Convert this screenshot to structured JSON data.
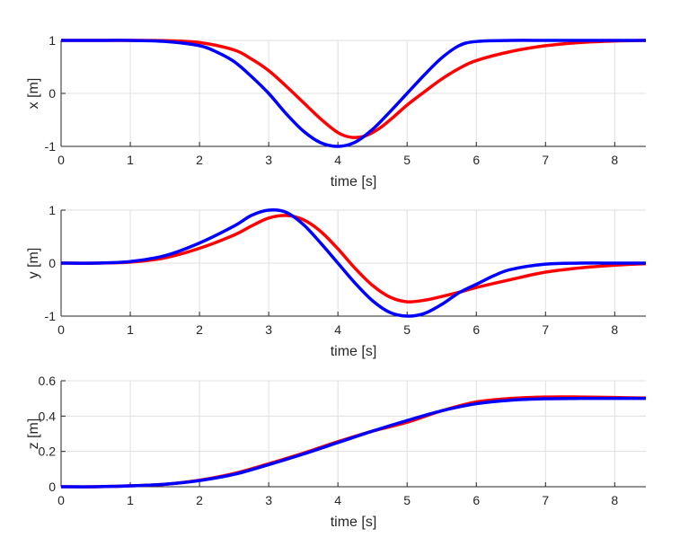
{
  "chart_data": [
    {
      "type": "line",
      "xlabel": "time [s]",
      "ylabel": "x [m]",
      "xlim": [
        0,
        8.45
      ],
      "ylim": [
        -1,
        1
      ],
      "xticks": [
        0,
        1,
        2,
        3,
        4,
        5,
        6,
        7,
        8
      ],
      "yticks": [
        -1,
        0,
        1
      ],
      "xtick_labels": [
        "0",
        "1",
        "2",
        "3",
        "4",
        "5",
        "6",
        "7",
        "8"
      ],
      "ytick_labels": [
        "-1",
        "0",
        "1"
      ],
      "grid": true,
      "series": [
        {
          "color": "#ff0000",
          "x": [
            0,
            0.5,
            1,
            1.5,
            2,
            2.5,
            2.75,
            3,
            3.25,
            3.5,
            3.75,
            4,
            4.2,
            4.4,
            4.6,
            4.8,
            5,
            5.25,
            5.5,
            5.75,
            6,
            6.5,
            7,
            7.5,
            8,
            8.45
          ],
          "y": [
            1,
            1,
            1,
            0.995,
            0.96,
            0.82,
            0.65,
            0.43,
            0.14,
            -0.17,
            -0.48,
            -0.74,
            -0.83,
            -0.8,
            -0.66,
            -0.45,
            -0.22,
            0.03,
            0.27,
            0.47,
            0.62,
            0.79,
            0.9,
            0.96,
            0.99,
            1
          ]
        },
        {
          "color": "#0000ff",
          "x": [
            0,
            0.5,
            1,
            1.5,
            2,
            2.25,
            2.5,
            2.75,
            3,
            3.25,
            3.5,
            3.75,
            4,
            4.25,
            4.5,
            4.75,
            5,
            5.25,
            5.5,
            5.75,
            6,
            6.5,
            7,
            7.5,
            8,
            8.45
          ],
          "y": [
            1,
            1,
            1,
            0.98,
            0.9,
            0.78,
            0.6,
            0.32,
            0,
            -0.38,
            -0.71,
            -0.93,
            -1,
            -0.92,
            -0.68,
            -0.35,
            0,
            0.35,
            0.67,
            0.9,
            0.98,
            1,
            1,
            1,
            1,
            1
          ]
        }
      ]
    },
    {
      "type": "line",
      "xlabel": "time [s]",
      "ylabel": "y [m]",
      "xlim": [
        0,
        8.45
      ],
      "ylim": [
        -1,
        1
      ],
      "xticks": [
        0,
        1,
        2,
        3,
        4,
        5,
        6,
        7,
        8
      ],
      "yticks": [
        -1,
        0,
        1
      ],
      "xtick_labels": [
        "0",
        "1",
        "2",
        "3",
        "4",
        "5",
        "6",
        "7",
        "8"
      ],
      "ytick_labels": [
        "-1",
        "0",
        "1"
      ],
      "grid": true,
      "series": [
        {
          "color": "#ff0000",
          "x": [
            0,
            0.5,
            1,
            1.5,
            2,
            2.5,
            2.75,
            3,
            3.25,
            3.5,
            3.75,
            4,
            4.25,
            4.5,
            4.75,
            5,
            5.25,
            5.5,
            5.75,
            6,
            6.5,
            7,
            7.5,
            8,
            8.45
          ],
          "y": [
            0,
            0,
            0.02,
            0.1,
            0.28,
            0.53,
            0.7,
            0.85,
            0.9,
            0.82,
            0.6,
            0.27,
            -0.1,
            -0.42,
            -0.64,
            -0.73,
            -0.7,
            -0.63,
            -0.55,
            -0.46,
            -0.31,
            -0.17,
            -0.09,
            -0.04,
            -0.01
          ]
        },
        {
          "color": "#0000ff",
          "x": [
            0,
            0.5,
            1,
            1.5,
            2,
            2.5,
            2.75,
            3,
            3.25,
            3.5,
            3.75,
            4,
            4.25,
            4.5,
            4.75,
            5,
            5.25,
            5.5,
            5.75,
            6,
            6.25,
            6.5,
            7,
            7.5,
            8,
            8.45
          ],
          "y": [
            0,
            0,
            0.03,
            0.14,
            0.38,
            0.7,
            0.9,
            1,
            0.96,
            0.73,
            0.38,
            0,
            -0.38,
            -0.71,
            -0.93,
            -1,
            -0.95,
            -0.78,
            -0.56,
            -0.4,
            -0.24,
            -0.12,
            -0.02,
            0,
            0,
            0
          ]
        }
      ]
    },
    {
      "type": "line",
      "xlabel": "time [s]",
      "ylabel": "z [m]",
      "xlim": [
        0,
        8.45
      ],
      "ylim": [
        0,
        0.6
      ],
      "xticks": [
        0,
        1,
        2,
        3,
        4,
        5,
        6,
        7,
        8
      ],
      "yticks": [
        0,
        0.2,
        0.4,
        0.6
      ],
      "xtick_labels": [
        "0",
        "1",
        "2",
        "3",
        "4",
        "5",
        "6",
        "7",
        "8"
      ],
      "ytick_labels": [
        "0",
        "0.2",
        "0.4",
        "0.6"
      ],
      "grid": true,
      "series": [
        {
          "color": "#ff0000",
          "x": [
            0,
            0.5,
            1,
            1.5,
            2,
            2.5,
            3,
            3.5,
            4,
            4.5,
            5,
            5.5,
            6,
            6.5,
            7,
            7.5,
            8,
            8.45
          ],
          "y": [
            0,
            0,
            0.005,
            0.014,
            0.037,
            0.075,
            0.13,
            0.19,
            0.255,
            0.315,
            0.365,
            0.43,
            0.48,
            0.5,
            0.508,
            0.508,
            0.505,
            0.502
          ]
        },
        {
          "color": "#0000ff",
          "x": [
            0,
            0.5,
            1,
            1.5,
            2,
            2.5,
            3,
            3.5,
            4,
            4.5,
            5,
            5.5,
            6,
            6.5,
            7,
            7.5,
            8,
            8.45
          ],
          "y": [
            0,
            0,
            0.005,
            0.014,
            0.035,
            0.07,
            0.125,
            0.185,
            0.25,
            0.315,
            0.375,
            0.43,
            0.47,
            0.49,
            0.498,
            0.5,
            0.5,
            0.5
          ]
        }
      ]
    }
  ]
}
